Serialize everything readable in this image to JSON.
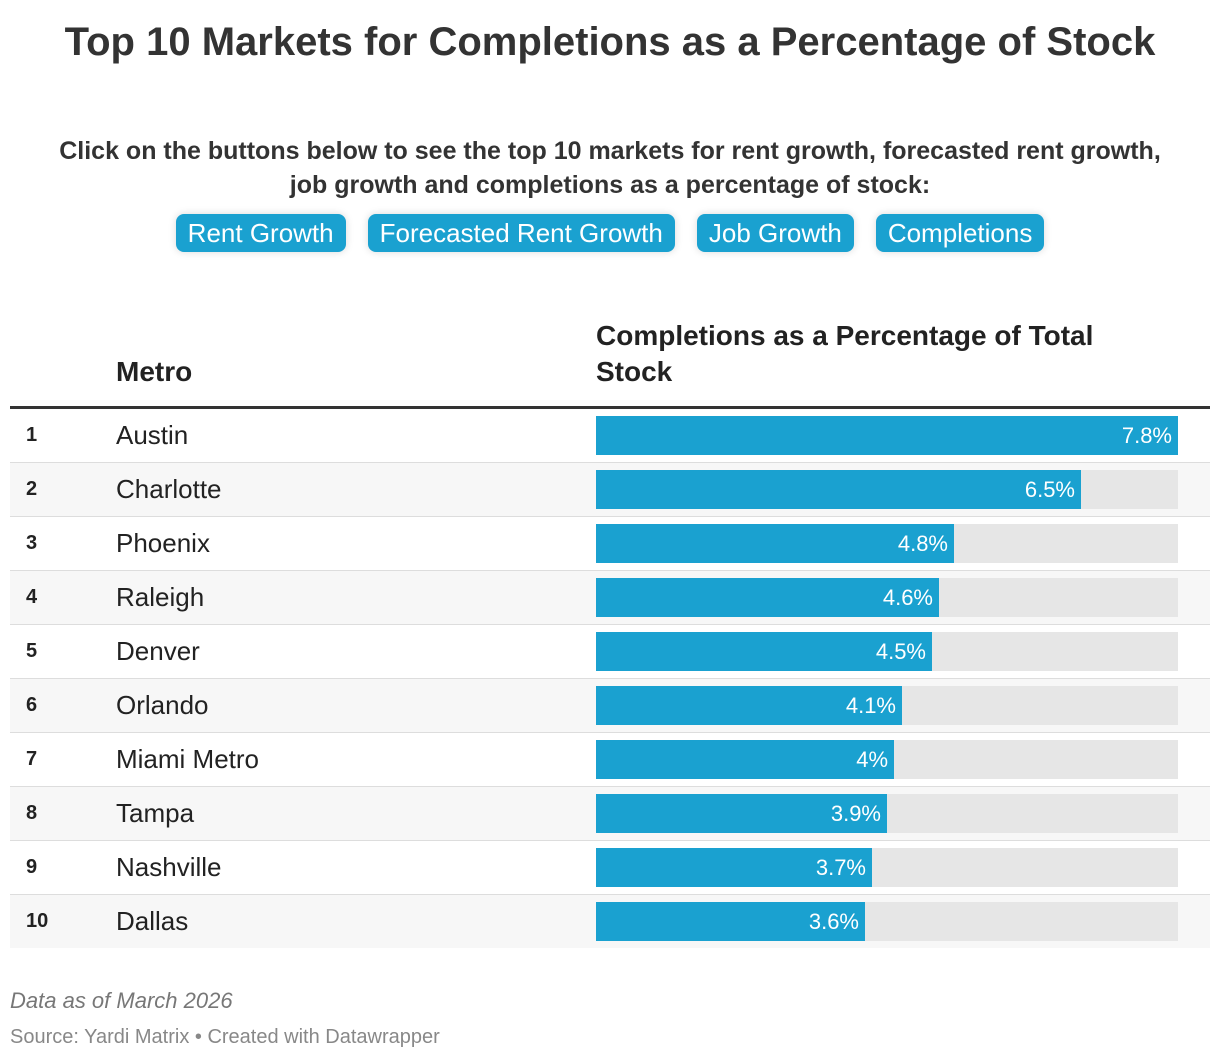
{
  "title": "Top 10 Markets for Completions as a Percentage of Stock",
  "description": {
    "line1": "Click on the buttons below to see the top 10 markets for rent growth, forecasted rent growth,",
    "line2": "job growth and completions as a percentage of stock:"
  },
  "buttons": [
    "Rent Growth",
    "Forecasted Rent Growth",
    "Job Growth",
    "Completions"
  ],
  "table": {
    "header_metro": "Metro",
    "header_value": "Completions as a Percentage of Total Stock"
  },
  "chart_data": {
    "type": "bar",
    "orientation": "horizontal",
    "title": "Top 10 Markets for Completions as a Percentage of Stock",
    "xlabel": "Completions as a Percentage of Total Stock",
    "ylabel": "Metro",
    "xlim": [
      0,
      7.8
    ],
    "ranks": [
      "1",
      "2",
      "3",
      "4",
      "5",
      "6",
      "7",
      "8",
      "9",
      "10"
    ],
    "categories": [
      "Austin",
      "Charlotte",
      "Phoenix",
      "Raleigh",
      "Denver",
      "Orlando",
      "Miami Metro",
      "Tampa",
      "Nashville",
      "Dallas"
    ],
    "values": [
      7.8,
      6.5,
      4.8,
      4.6,
      4.5,
      4.1,
      4,
      3.9,
      3.7,
      3.6
    ],
    "value_labels": [
      "7.8%",
      "6.5%",
      "4.8%",
      "4.6%",
      "4.5%",
      "4.1%",
      "4%",
      "3.9%",
      "3.7%",
      "3.6%"
    ],
    "bar_color": "#1aa1d0",
    "track_color": "#e6e6e6"
  },
  "footer": {
    "note": "Data as of March 2026",
    "source": "Source: Yardi Matrix • Created with Datawrapper"
  }
}
